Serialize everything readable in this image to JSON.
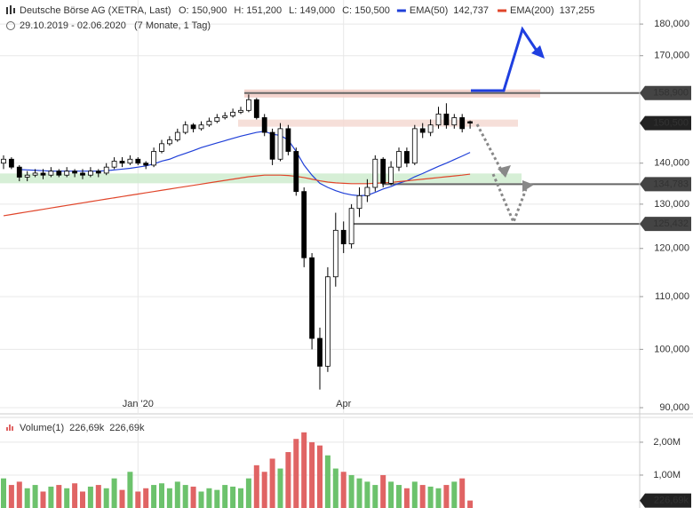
{
  "chart_data": [
    {
      "type": "candlestick",
      "title": "Deutsche Börse AG (XETRA, Last)",
      "ohlc_labels": [
        {
          "label": "O:",
          "value": "150,900"
        },
        {
          "label": "H:",
          "value": "151,200"
        },
        {
          "label": "L:",
          "value": "149,000"
        },
        {
          "label": "C:",
          "value": "150,500"
        }
      ],
      "subtitle": "29.10.2019 - 02.06.2020",
      "period": "(7 Monate, 1 Tag)",
      "categories": [
        null,
        null,
        null,
        null,
        null,
        null,
        null,
        null,
        null,
        null,
        null,
        null,
        null,
        null,
        null,
        null,
        null,
        "Jan '20",
        null,
        null,
        null,
        null,
        null,
        null,
        null,
        null,
        null,
        null,
        null,
        null,
        null,
        null,
        null,
        null,
        null,
        null,
        null,
        null,
        null,
        null,
        null,
        null,
        null,
        "Apr",
        null,
        null,
        null,
        null,
        null,
        null,
        null,
        null,
        null,
        null,
        null,
        null,
        null,
        null,
        null,
        null
      ],
      "open": [
        140000,
        141000,
        139000,
        136500,
        137000,
        137500,
        137000,
        138000,
        137000,
        138000,
        137500,
        137000,
        138000,
        137500,
        139000,
        140500,
        140000,
        141000,
        140000,
        139500,
        143000,
        145000,
        146000,
        148000,
        150000,
        149000,
        150000,
        151000,
        152000,
        152500,
        153500,
        154000,
        157000,
        152000,
        148000,
        141000,
        149000,
        143000,
        133000,
        118000,
        102000,
        97000,
        114000,
        124000,
        121000,
        129000,
        132000,
        134000,
        141000,
        135000,
        139000,
        143000,
        140000,
        149000,
        148000,
        150000,
        153000,
        150000,
        152000,
        150900
      ],
      "high": [
        142000,
        141500,
        139500,
        138000,
        138500,
        138500,
        139000,
        138500,
        139000,
        138500,
        138500,
        139000,
        138500,
        140000,
        141500,
        141500,
        142000,
        141500,
        140500,
        144000,
        146000,
        147000,
        149000,
        151000,
        150500,
        151000,
        152000,
        153000,
        153500,
        154500,
        155000,
        158500,
        157500,
        153000,
        149000,
        150500,
        150000,
        144000,
        134000,
        119000,
        104000,
        116000,
        128000,
        126000,
        130000,
        134000,
        136000,
        142000,
        141500,
        140500,
        144000,
        144000,
        150000,
        150500,
        151500,
        155000,
        156000,
        153000,
        153000,
        151200
      ],
      "low": [
        138500,
        138500,
        135500,
        135500,
        136500,
        136000,
        136500,
        136500,
        136500,
        136500,
        136000,
        136500,
        136500,
        137000,
        138500,
        139000,
        139500,
        139500,
        138500,
        139000,
        142500,
        144500,
        145500,
        147500,
        148000,
        148500,
        149500,
        150500,
        151500,
        152000,
        153000,
        153500,
        151500,
        147000,
        139500,
        140500,
        142000,
        132000,
        116000,
        100000,
        93000,
        96000,
        112000,
        119000,
        120000,
        127000,
        130500,
        133000,
        134000,
        134500,
        138000,
        139000,
        139500,
        146500,
        147000,
        149000,
        149000,
        149000,
        148000,
        149000
      ],
      "close": [
        141000,
        139000,
        136500,
        137000,
        137500,
        137000,
        138000,
        137000,
        138000,
        137500,
        137000,
        138000,
        137500,
        139000,
        140500,
        140000,
        141000,
        140000,
        139500,
        143000,
        145000,
        146000,
        148000,
        150000,
        149000,
        150000,
        151000,
        152000,
        152500,
        153500,
        154000,
        157000,
        152000,
        148000,
        141000,
        149000,
        143000,
        133000,
        118000,
        102000,
        97000,
        114000,
        124000,
        121000,
        129000,
        132000,
        134000,
        141000,
        135000,
        139000,
        143000,
        140000,
        149000,
        148000,
        150000,
        153000,
        150000,
        152000,
        149000,
        150500
      ],
      "up_color": "#ffffff",
      "down_color": "#000000",
      "series": [
        {
          "name": "EMA(50)",
          "color": "#1f3fd8",
          "value_label": "142,737",
          "values": [
            null,
            null,
            138400,
            138300,
            138200,
            138100,
            138000,
            138000,
            138000,
            138000,
            138000,
            138000,
            138000,
            138100,
            138300,
            138500,
            138700,
            139000,
            139300,
            139800,
            140500,
            141000,
            141800,
            142500,
            143200,
            144000,
            144600,
            145200,
            145800,
            146400,
            147000,
            147500,
            148000,
            148300,
            147500,
            147200,
            146000,
            143000,
            139500,
            137000,
            135000,
            134000,
            133200,
            132600,
            132200,
            132000,
            132100,
            132800,
            133600,
            134200,
            135000,
            135600,
            136600,
            137400,
            138300,
            139200,
            140000,
            140900,
            141800,
            142737
          ]
        },
        {
          "name": "EMA(200)",
          "color": "#e0452a",
          "value_label": "137,255",
          "values": [
            127300,
            127600,
            127900,
            128200,
            128500,
            128800,
            129100,
            129400,
            129700,
            130000,
            130300,
            130600,
            130900,
            131200,
            131500,
            131800,
            132100,
            132400,
            132700,
            133000,
            133300,
            133600,
            133900,
            134200,
            134500,
            134800,
            135100,
            135400,
            135700,
            136000,
            136300,
            136600,
            136800,
            137000,
            137000,
            137000,
            136900,
            136700,
            136400,
            136000,
            135600,
            135300,
            135100,
            135000,
            134900,
            134900,
            134900,
            135000,
            135100,
            135200,
            135400,
            135600,
            135800,
            136000,
            136200,
            136400,
            136600,
            136800,
            137000,
            137255
          ]
        }
      ],
      "ylim": [
        89140,
        188000
      ],
      "log_scale": true,
      "grid": true,
      "yticks": [
        {
          "value": 90000,
          "label": "90,000"
        },
        {
          "value": 100000,
          "label": "100,000"
        },
        {
          "value": 110000,
          "label": "110,000"
        },
        {
          "value": 120000,
          "label": "120,000"
        },
        {
          "value": 130000,
          "label": "130,000"
        },
        {
          "value": 140000,
          "label": "140,000"
        },
        {
          "value": 170000,
          "label": "170,000"
        },
        {
          "value": 180000,
          "label": "180,000"
        }
      ],
      "levels": [
        {
          "value": 158900,
          "label": "158,900"
        },
        {
          "value": 150500,
          "label": "150,500"
        },
        {
          "value": 134783,
          "label": "134,783"
        },
        {
          "value": 125432,
          "label": "125,432"
        }
      ]
    },
    {
      "type": "bar",
      "series": [
        {
          "name": "Volume(1)",
          "values": [
            900000,
            700000,
            800000,
            600000,
            700000,
            500000,
            650000,
            700000,
            600000,
            750000,
            500000,
            650000,
            700000,
            600000,
            900000,
            550000,
            1100000,
            500000,
            600000,
            700000,
            750000,
            600000,
            800000,
            700000,
            650000,
            500000,
            600000,
            550000,
            700000,
            650000,
            600000,
            900000,
            1300000,
            1100000,
            1500000,
            1200000,
            1700000,
            2100000,
            2300000,
            2000000,
            1900000,
            1600000,
            1200000,
            1100000,
            1000000,
            900000,
            800000,
            700000,
            1000000,
            800000,
            700000,
            600000,
            800000,
            700000,
            650000,
            600000,
            700000,
            800000,
            900000,
            226690
          ]
        }
      ],
      "legend_labels": [
        "226,69k",
        "226,69k"
      ],
      "up_color": "#6cc26c",
      "down_color": "#e06464",
      "ylim": [
        0,
        2700000
      ],
      "grid": true,
      "yticks": [
        {
          "value": 1000000,
          "label": "1,00M"
        },
        {
          "value": 2000000,
          "label": "2,00M"
        }
      ],
      "current": {
        "value": 226690,
        "label": "226,69k"
      }
    }
  ]
}
